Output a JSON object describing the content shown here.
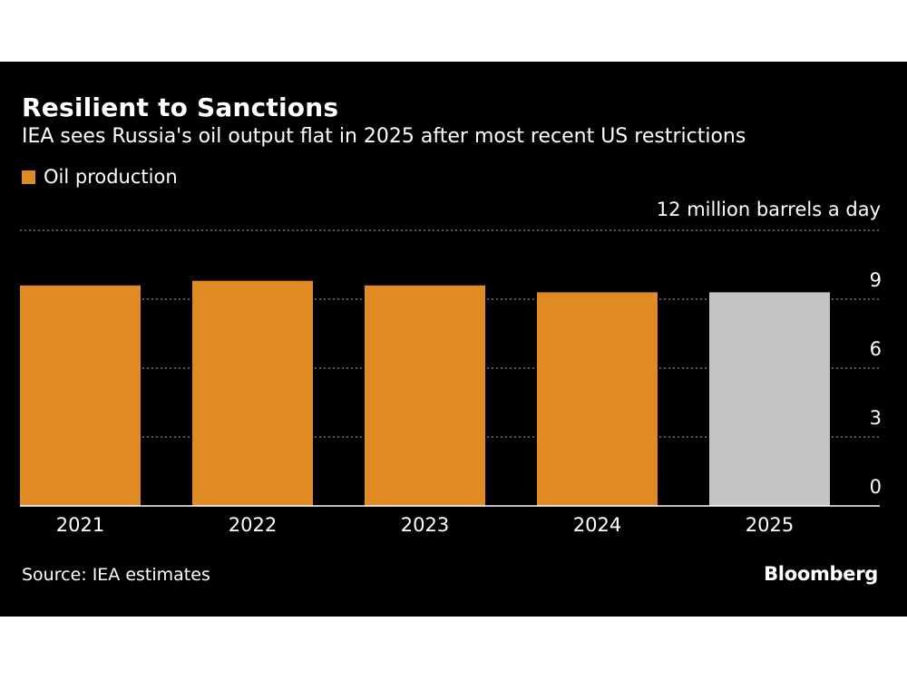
{
  "header": {
    "title": "Resilient to Sanctions",
    "subtitle": "IEA sees Russia's oil output flat in 2025 after most recent US restrictions"
  },
  "legend": {
    "label": "Oil production",
    "color": "#e08a24"
  },
  "footer": {
    "source": "Source: IEA estimates",
    "brand": "Bloomberg"
  },
  "chart_data": {
    "type": "bar",
    "unit_label": "12 million barrels a day",
    "categories": [
      "2021",
      "2022",
      "2023",
      "2024",
      "2025"
    ],
    "series": [
      {
        "name": "Oil production",
        "values": [
          9.6,
          9.8,
          9.6,
          9.3,
          9.3
        ]
      }
    ],
    "bar_colors": [
      "#e08a24",
      "#e08a24",
      "#e08a24",
      "#e08a24",
      "#c4c4c4"
    ],
    "estimate_color": "#c4c4c4",
    "ylim": [
      0,
      12
    ],
    "yticks": [
      "0",
      "3",
      "6",
      "9"
    ],
    "ytick_values": [
      0,
      3,
      6,
      9
    ],
    "grid": true,
    "gridline_values": [
      3,
      6,
      9,
      12
    ],
    "legend_position": "top-left",
    "y_axis_position": "right"
  }
}
